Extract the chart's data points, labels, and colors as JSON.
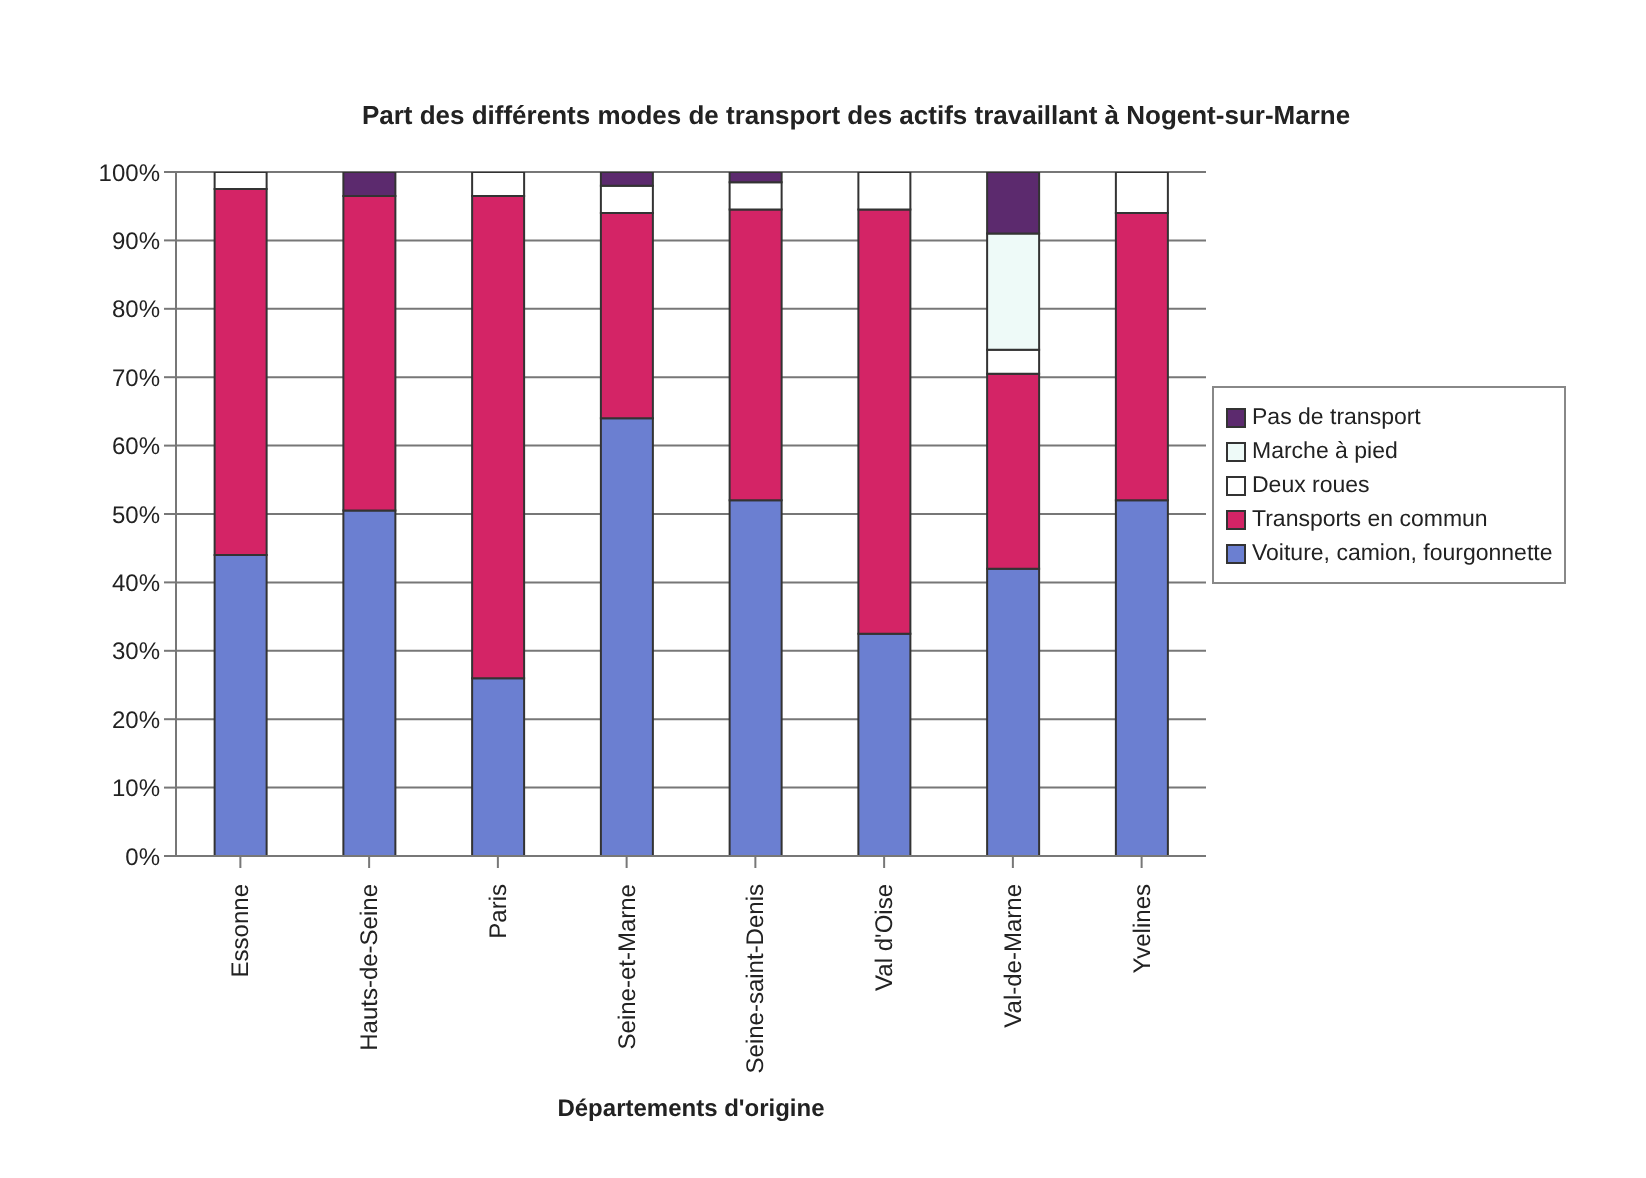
{
  "chart_data": {
    "type": "bar",
    "stacked": true,
    "title": "Part des différents modes de transport des actifs travaillant à Nogent-sur-Marne",
    "xlabel": "Départements d'origine",
    "categories": [
      "Essonne",
      "Hauts-de-Seine",
      "Paris",
      "Seine-et-Marne",
      "Seine-saint-Denis",
      "Val d'Oise",
      "Val-de-Marne",
      "Yvelines"
    ],
    "series": [
      {
        "name": "Voiture, camion, fourgonnette",
        "color": "#6b7fd1",
        "values": [
          44,
          50.5,
          26,
          64,
          52,
          32.5,
          42,
          52
        ]
      },
      {
        "name": "Transports en commun",
        "color": "#d42466",
        "values": [
          53.5,
          46,
          70.5,
          30,
          42.5,
          62,
          28.5,
          42
        ]
      },
      {
        "name": "Deux roues",
        "color": "#ffffff",
        "values": [
          2.5,
          0,
          3.5,
          4,
          4,
          5.5,
          3.5,
          6
        ]
      },
      {
        "name": "Marche à pied",
        "color": "#eefaf8",
        "values": [
          0,
          0,
          0,
          0,
          0,
          0,
          17,
          0
        ]
      },
      {
        "name": "Pas de transport",
        "color": "#5c2a6e",
        "values": [
          0,
          3.5,
          0,
          2,
          1.5,
          0,
          9,
          0
        ]
      }
    ],
    "ylim": [
      0,
      100
    ],
    "yticks": [
      {
        "value": 0,
        "label": "0%"
      },
      {
        "value": 10,
        "label": "10%"
      },
      {
        "value": 20,
        "label": "20%"
      },
      {
        "value": 30,
        "label": "30%"
      },
      {
        "value": 40,
        "label": "40%"
      },
      {
        "value": 50,
        "label": "50%"
      },
      {
        "value": 60,
        "label": "60%"
      },
      {
        "value": 70,
        "label": "70%"
      },
      {
        "value": 80,
        "label": "80%"
      },
      {
        "value": 90,
        "label": "90%"
      },
      {
        "value": 100,
        "label": "100%"
      }
    ],
    "grid": "y",
    "legend": "right"
  }
}
